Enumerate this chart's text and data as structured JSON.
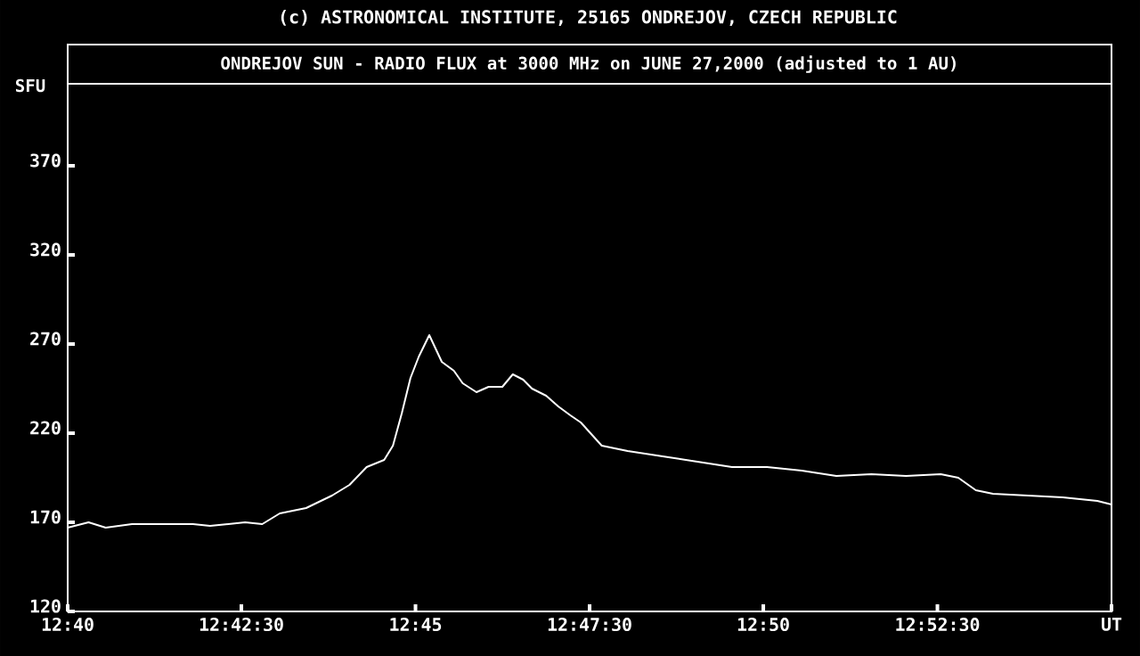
{
  "chart_data": {
    "type": "line",
    "title": "(c) ASTRONOMICAL INSTITUTE, 25165 ONDREJOV, CZECH REPUBLIC",
    "subtitle": "ONDREJOV SUN - RADIO FLUX at 3000 MHz on JUNE 27,2000 (adjusted to 1 AU)",
    "ylabel": "SFU",
    "color": "#ffffff",
    "x": [
      12.6667,
      12.6717,
      12.6758,
      12.6821,
      12.6883,
      12.6967,
      12.7008,
      12.7092,
      12.7133,
      12.7175,
      12.7238,
      12.73,
      12.7342,
      12.7383,
      12.7425,
      12.7446,
      12.7467,
      12.7488,
      12.7508,
      12.7533,
      12.7563,
      12.7592,
      12.7613,
      12.7646,
      12.7675,
      12.7708,
      12.7733,
      12.7758,
      12.7779,
      12.7813,
      12.7842,
      12.7871,
      12.7896,
      12.7946,
      12.8008,
      12.8092,
      12.8175,
      12.8258,
      12.8342,
      12.8425,
      12.8508,
      12.8592,
      12.8675,
      12.8758,
      12.88,
      12.8842,
      12.8883,
      12.8967,
      12.905,
      12.9133,
      12.9167
    ],
    "values": [
      167,
      170,
      167,
      169,
      169,
      169,
      168,
      170,
      169,
      175,
      178,
      185,
      191,
      201,
      205,
      213,
      231,
      251,
      263,
      275,
      260,
      255,
      248,
      243,
      246,
      246,
      253,
      250,
      245,
      241,
      235,
      230,
      226,
      213,
      210,
      207,
      204,
      201,
      201,
      199,
      196,
      197,
      196,
      197,
      195,
      188,
      186,
      185,
      184,
      182,
      180
    ],
    "xlim": [
      12.6667,
      12.9167
    ],
    "ylim": [
      120,
      416
    ],
    "xticks": [
      {
        "value": 12.6667,
        "label": "12:40"
      },
      {
        "value": 12.7083,
        "label": "12:42:30"
      },
      {
        "value": 12.75,
        "label": "12:45"
      },
      {
        "value": 12.7917,
        "label": "12:47:30"
      },
      {
        "value": 12.8333,
        "label": "12:50"
      },
      {
        "value": 12.875,
        "label": "12:52:30"
      },
      {
        "value": 12.9167,
        "label": "UT"
      }
    ],
    "yticks": [
      120,
      170,
      220,
      270,
      320,
      370
    ]
  }
}
